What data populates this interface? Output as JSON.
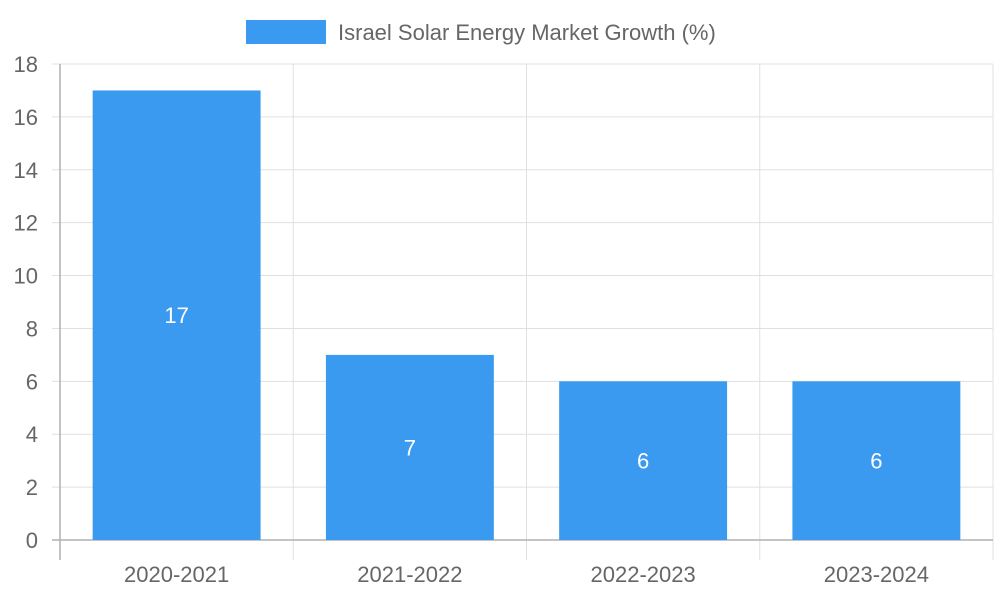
{
  "chart_data": {
    "type": "bar",
    "title": "",
    "xlabel": "",
    "ylabel": "",
    "categories": [
      "2020-2021",
      "2021-2022",
      "2022-2023",
      "2023-2024"
    ],
    "series": [
      {
        "name": "Israel Solar Energy Market Growth (%)",
        "values": [
          17,
          7,
          6,
          6
        ],
        "color": "#3a9af0"
      }
    ],
    "ylim": [
      0,
      18
    ],
    "yticks": [
      0,
      2,
      4,
      6,
      8,
      10,
      12,
      14,
      16,
      18
    ],
    "grid": true,
    "legend_position": "top-center",
    "data_labels": [
      "17",
      "7",
      "6",
      "6"
    ]
  }
}
